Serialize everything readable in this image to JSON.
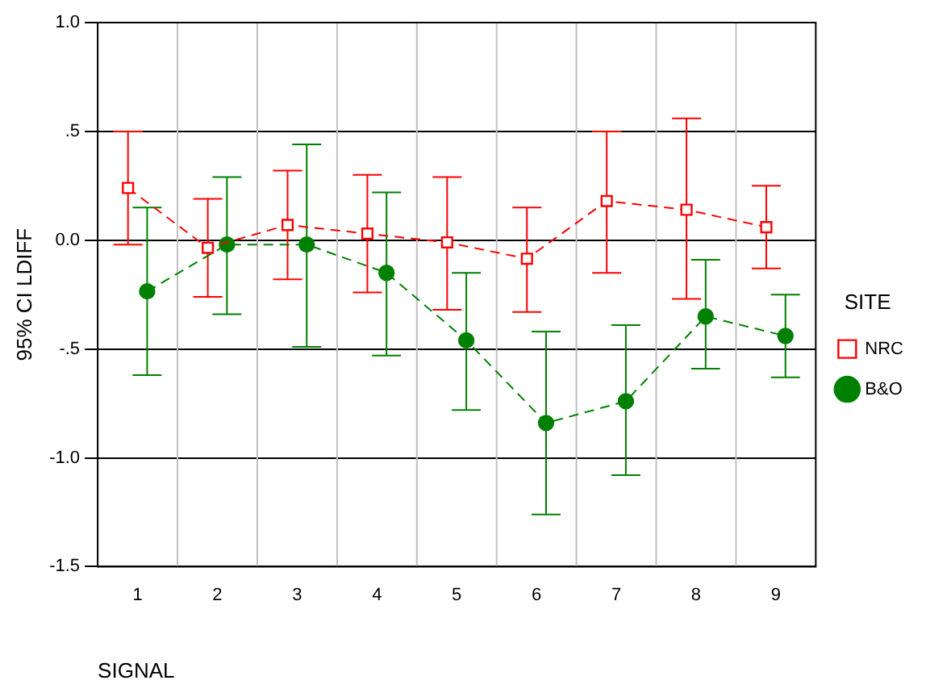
{
  "chart_data": {
    "type": "line",
    "xlabel": "SIGNAL",
    "ylabel": "95% CI LDIFF",
    "legend_title": "SITE",
    "categories": [
      "1",
      "2",
      "3",
      "4",
      "5",
      "6",
      "7",
      "8",
      "9"
    ],
    "series": [
      {
        "name": "NRC",
        "color": "#ff0000",
        "marker": "square",
        "values": [
          0.24,
          -0.035,
          0.07,
          0.03,
          -0.01,
          -0.085,
          0.18,
          0.14,
          0.06
        ],
        "errors": [
          [
            -0.02,
            0.5
          ],
          [
            -0.26,
            0.19
          ],
          [
            -0.18,
            0.32
          ],
          [
            -0.24,
            0.3
          ],
          [
            -0.32,
            0.29
          ],
          [
            -0.33,
            0.15
          ],
          [
            -0.15,
            0.5
          ],
          [
            -0.27,
            0.56
          ],
          [
            -0.13,
            0.25
          ]
        ]
      },
      {
        "name": "B&O",
        "color": "#008000",
        "marker": "circle",
        "values": [
          -0.235,
          -0.02,
          -0.02,
          -0.15,
          -0.46,
          -0.84,
          -0.74,
          -0.35,
          -0.44
        ],
        "errors": [
          [
            -0.62,
            0.15
          ],
          [
            -0.34,
            0.29
          ],
          [
            -0.49,
            0.44
          ],
          [
            -0.53,
            0.22
          ],
          [
            -0.78,
            -0.15
          ],
          [
            -1.26,
            -0.42
          ],
          [
            -1.08,
            -0.39
          ],
          [
            -0.59,
            -0.09
          ],
          [
            -0.63,
            -0.25
          ]
        ]
      }
    ],
    "ylim": [
      -1.5,
      1.0
    ],
    "yticks": [
      {
        "value": 1.0,
        "label": "1.0"
      },
      {
        "value": 0.5,
        "label": ".5"
      },
      {
        "value": 0,
        "label": "0.0"
      },
      {
        "value": -0.5,
        "label": "-.5"
      },
      {
        "value": -1.0,
        "label": "-1.0"
      },
      {
        "value": -1.5,
        "label": "-1.5"
      }
    ],
    "grid": true,
    "legend": "right",
    "line_style": "dashed"
  }
}
